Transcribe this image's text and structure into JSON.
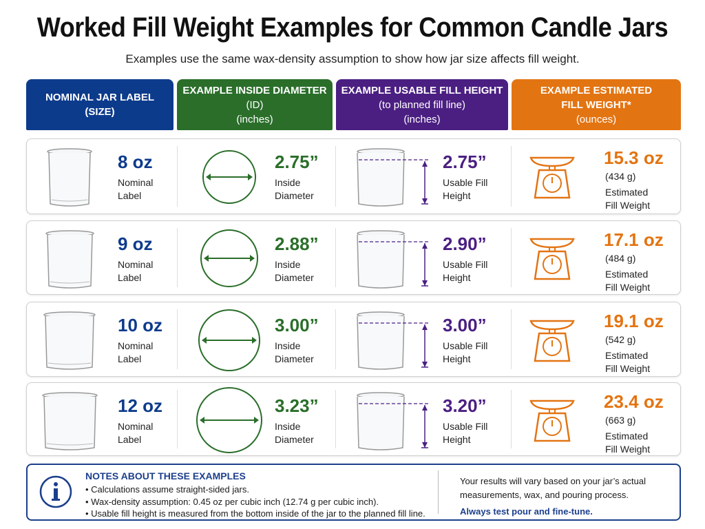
{
  "title": "Worked Fill Weight Examples for Common Candle Jars",
  "subtitle": "Examples use the same wax-density assumption to show how jar size affects fill weight.",
  "colors": {
    "blue": "#0d3b8c",
    "green": "#2a6e2a",
    "purple": "#4b1f82",
    "orange": "#e37412"
  },
  "headers": [
    {
      "line1": "NOMINAL JAR LABEL",
      "line2": "(SIZE)",
      "line3": ""
    },
    {
      "line1": "EXAMPLE INSIDE DIAMETER",
      "line2": "(ID)",
      "line3": "(inches)"
    },
    {
      "line1": "EXAMPLE USABLE FILL HEIGHT",
      "line2": "(to planned fill line)",
      "line3": "(inches)"
    },
    {
      "line1": "EXAMPLE ESTIMATED",
      "line2": "FILL WEIGHT*",
      "line3": "(ounces)"
    }
  ],
  "row_labels": {
    "size": "Nominal Label",
    "diameter": "Inside Diameter",
    "height": "Usable Fill Height",
    "weight": "Estimated Fill Weight"
  },
  "rows": [
    {
      "size": "8 oz",
      "diameter": "2.75”",
      "height": "2.75”",
      "weight": "15.3 oz",
      "grams": "(434 g)"
    },
    {
      "size": "9 oz",
      "diameter": "2.88”",
      "height": "2.90”",
      "weight": "17.1 oz",
      "grams": "(484 g)"
    },
    {
      "size": "10 oz",
      "diameter": "3.00”",
      "height": "3.00”",
      "weight": "19.1 oz",
      "grams": "(542 g)"
    },
    {
      "size": "12 oz",
      "diameter": "3.23”",
      "height": "3.20”",
      "weight": "23.4 oz",
      "grams": "(663 g)"
    }
  ],
  "notes": {
    "icon": "info-icon",
    "heading": "NOTES ABOUT THESE EXAMPLES",
    "items": [
      "Calculations assume straight-sided jars.",
      "Wax-density assumption: 0.45 oz per cubic inch (12.74 g per cubic inch).",
      "Usable fill height is measured from the bottom inside of the jar to the planned fill line."
    ],
    "right_text": "Your results will vary based on your jar’s actual measurements, wax, and pouring process.",
    "right_emphasis": "Always test pour and fine-tune."
  }
}
